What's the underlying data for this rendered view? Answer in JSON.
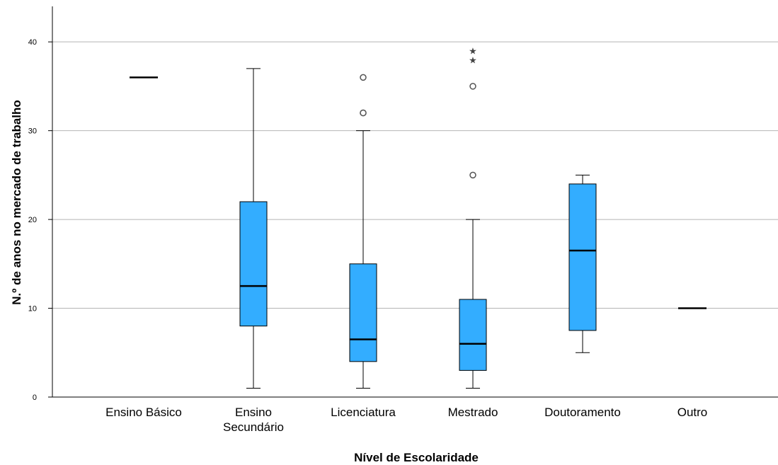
{
  "chart_data": {
    "type": "boxplot",
    "xlabel": "Nível de Escolaridade",
    "ylabel": "N.º de anos no mercado de trabalho",
    "ylim": [
      0,
      44
    ],
    "yticks": [
      0,
      10,
      20,
      30,
      40
    ],
    "grid": "horizontal",
    "box_color": "#33adff",
    "categories": [
      {
        "label": [
          "Ensino Básico"
        ],
        "min": 36,
        "q1": 36,
        "median": 36,
        "q3": 36,
        "max": 36,
        "outliers": [],
        "extremes": []
      },
      {
        "label": [
          "Ensino",
          "Secundário"
        ],
        "min": 1,
        "q1": 8,
        "median": 12.5,
        "q3": 22,
        "max": 37,
        "outliers": [],
        "extremes": []
      },
      {
        "label": [
          "Licenciatura"
        ],
        "min": 1,
        "q1": 4,
        "median": 6.5,
        "q3": 15,
        "max": 30,
        "outliers": [
          32,
          32,
          36
        ],
        "extremes": []
      },
      {
        "label": [
          "Mestrado"
        ],
        "min": 1,
        "q1": 3,
        "median": 6,
        "q3": 11,
        "max": 20,
        "outliers": [
          25,
          35
        ],
        "extremes": [
          38,
          39
        ]
      },
      {
        "label": [
          "Doutoramento"
        ],
        "min": 5,
        "q1": 7.5,
        "median": 16.5,
        "q3": 24,
        "max": 25,
        "outliers": [],
        "extremes": []
      },
      {
        "label": [
          "Outro"
        ],
        "min": 10,
        "q1": 10,
        "median": 10,
        "q3": 10,
        "max": 10,
        "outliers": [],
        "extremes": []
      }
    ]
  }
}
